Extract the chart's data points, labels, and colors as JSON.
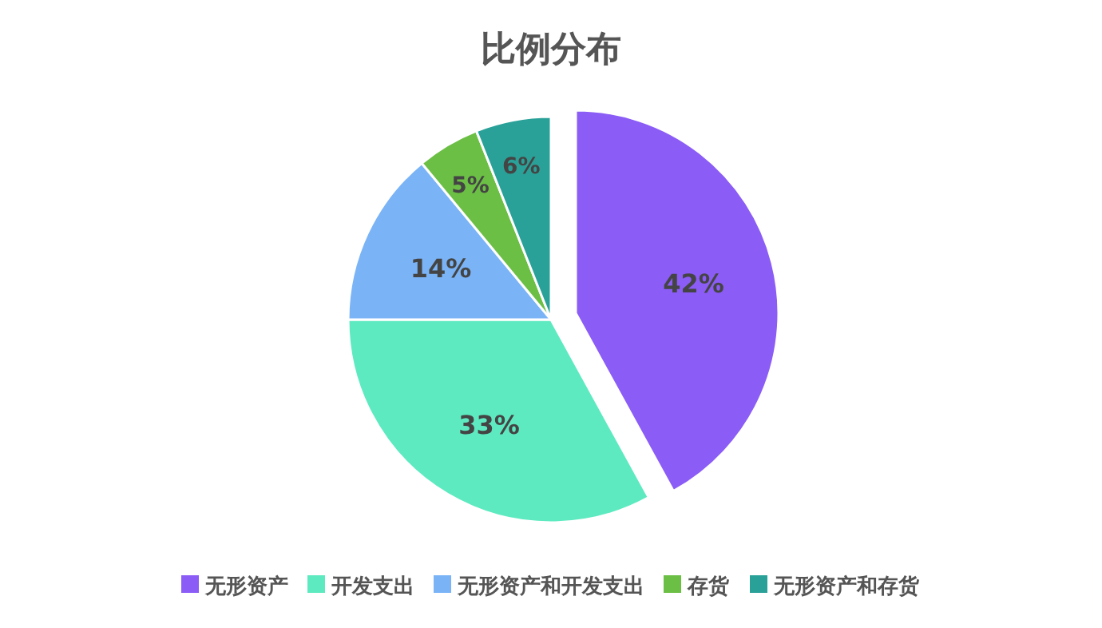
{
  "chart_data": {
    "type": "pie",
    "title": "比例分布",
    "categories": [
      "无形资产",
      "开发支出",
      "无形资产和开发支出",
      "存货",
      "无形资产和存货"
    ],
    "values": [
      42,
      33,
      14,
      5,
      6
    ],
    "value_labels": [
      "42%",
      "33%",
      "14%",
      "5%",
      "6%"
    ],
    "colors": [
      "#8b5cf6",
      "#5eeac0",
      "#7ab4f7",
      "#6cbf45",
      "#2aa198"
    ],
    "legend": "bottom"
  }
}
